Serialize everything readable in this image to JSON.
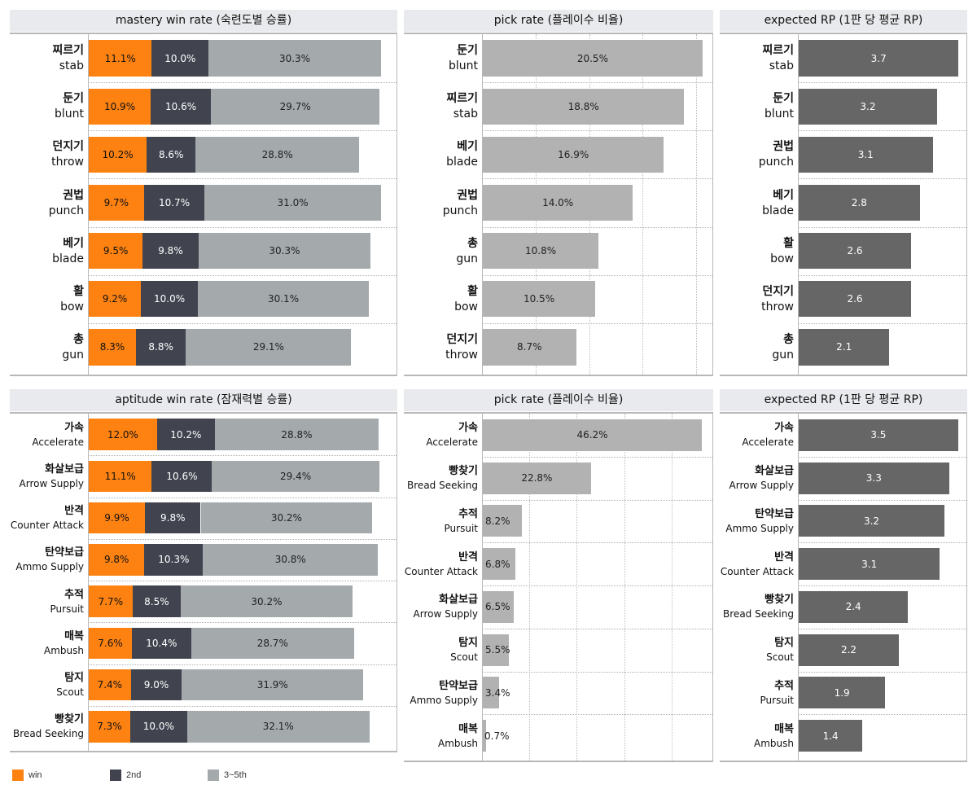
{
  "colors": {
    "win": "#fd8212",
    "second": "#41444f",
    "third_to_fifth": "#a4a9ac",
    "pick": "#b2b2b2",
    "rp": "#666666",
    "title_bg": "#e9eaed"
  },
  "legend": [
    {
      "label": "win",
      "color": "#fd8212"
    },
    {
      "label": "2nd",
      "color": "#41444f"
    },
    {
      "label": "3~5th",
      "color": "#a4a9ac"
    }
  ],
  "chart_data": [
    {
      "id": "mastery_win",
      "type": "bar",
      "stacked": true,
      "orientation": "horizontal",
      "title": "mastery win rate (숙련도별 승률)",
      "categories": [
        {
          "ko": "찌르기",
          "en": "stab"
        },
        {
          "ko": "둔기",
          "en": "blunt"
        },
        {
          "ko": "던지기",
          "en": "throw"
        },
        {
          "ko": "권법",
          "en": "punch"
        },
        {
          "ko": "베기",
          "en": "blade"
        },
        {
          "ko": "활",
          "en": "bow"
        },
        {
          "ko": "총",
          "en": "gun"
        }
      ],
      "series": [
        {
          "name": "win",
          "values": [
            11.1,
            10.9,
            10.2,
            9.7,
            9.5,
            9.2,
            8.3
          ],
          "labels": [
            "11.1%",
            "10.9%",
            "10.2%",
            "9.7%",
            "9.5%",
            "9.2%",
            "8.3%"
          ]
        },
        {
          "name": "2nd",
          "values": [
            10.0,
            10.6,
            8.6,
            10.7,
            9.8,
            10.0,
            8.8
          ],
          "labels": [
            "10.0%",
            "10.6%",
            "8.6%",
            "10.7%",
            "9.8%",
            "10.0%",
            "8.8%"
          ]
        },
        {
          "name": "3~5th",
          "values": [
            30.3,
            29.7,
            28.8,
            31.0,
            30.3,
            30.1,
            29.1
          ],
          "labels": [
            "30.3%",
            "29.7%",
            "28.8%",
            "31.0%",
            "30.3%",
            "30.1%",
            "29.1%"
          ]
        }
      ],
      "xlim": [
        0,
        54.3
      ],
      "grid": false
    },
    {
      "id": "mastery_pick",
      "type": "bar",
      "orientation": "horizontal",
      "title": "pick rate (플레이수 비율)",
      "categories": [
        {
          "ko": "둔기",
          "en": "blunt"
        },
        {
          "ko": "찌르기",
          "en": "stab"
        },
        {
          "ko": "베기",
          "en": "blade"
        },
        {
          "ko": "권법",
          "en": "punch"
        },
        {
          "ko": "총",
          "en": "gun"
        },
        {
          "ko": "활",
          "en": "bow"
        },
        {
          "ko": "던지기",
          "en": "throw"
        }
      ],
      "values": [
        20.5,
        18.8,
        16.9,
        14.0,
        10.8,
        10.5,
        8.7
      ],
      "labels": [
        "20.5%",
        "18.8%",
        "16.9%",
        "14.0%",
        "10.8%",
        "10.5%",
        "8.7%"
      ],
      "xlim": [
        0,
        21.5
      ],
      "grid_step": 5,
      "grid": true
    },
    {
      "id": "mastery_rp",
      "type": "bar",
      "orientation": "horizontal",
      "title": "expected RP (1판 당 평균 RP)",
      "categories": [
        {
          "ko": "찌르기",
          "en": "stab"
        },
        {
          "ko": "둔기",
          "en": "blunt"
        },
        {
          "ko": "권법",
          "en": "punch"
        },
        {
          "ko": "베기",
          "en": "blade"
        },
        {
          "ko": "활",
          "en": "bow"
        },
        {
          "ko": "던지기",
          "en": "throw"
        },
        {
          "ko": "총",
          "en": "gun"
        }
      ],
      "values": [
        3.7,
        3.2,
        3.1,
        2.8,
        2.6,
        2.6,
        2.1
      ],
      "labels": [
        "3.7",
        "3.2",
        "3.1",
        "2.8",
        "2.6",
        "2.6",
        "2.1"
      ],
      "xlim": [
        0,
        3.9
      ],
      "grid": false
    },
    {
      "id": "aptitude_win",
      "type": "bar",
      "stacked": true,
      "orientation": "horizontal",
      "title": "aptitude win rate (잠재력별 승률)",
      "categories": [
        {
          "ko": "가속",
          "en": "Accelerate"
        },
        {
          "ko": "화살보급",
          "en": "Arrow Supply"
        },
        {
          "ko": "반격",
          "en": "Counter Attack"
        },
        {
          "ko": "탄약보급",
          "en": "Ammo Supply"
        },
        {
          "ko": "추적",
          "en": "Pursuit"
        },
        {
          "ko": "매복",
          "en": "Ambush"
        },
        {
          "ko": "탐지",
          "en": "Scout"
        },
        {
          "ko": "빵찾기",
          "en": "Bread Seeking"
        }
      ],
      "series": [
        {
          "name": "win",
          "values": [
            12.0,
            11.1,
            9.9,
            9.8,
            7.7,
            7.6,
            7.4,
            7.3
          ],
          "labels": [
            "12.0%",
            "11.1%",
            "9.9%",
            "9.8%",
            "7.7%",
            "7.6%",
            "7.4%",
            "7.3%"
          ]
        },
        {
          "name": "2nd",
          "values": [
            10.2,
            10.6,
            9.8,
            10.3,
            8.5,
            10.4,
            9.0,
            10.0
          ],
          "labels": [
            "10.2%",
            "10.6%",
            "9.8%",
            "10.3%",
            "8.5%",
            "10.4%",
            "9.0%",
            "10.0%"
          ]
        },
        {
          "name": "3~5th",
          "values": [
            28.8,
            29.4,
            30.2,
            30.8,
            30.2,
            28.7,
            31.9,
            32.1
          ],
          "labels": [
            "28.8%",
            "29.4%",
            "30.2%",
            "30.8%",
            "30.2%",
            "28.7%",
            "31.9%",
            "32.1%"
          ]
        }
      ],
      "xlim": [
        0,
        54.3
      ],
      "grid": false
    },
    {
      "id": "aptitude_pick",
      "type": "bar",
      "orientation": "horizontal",
      "title": "pick rate (플레이수 비율)",
      "categories": [
        {
          "ko": "가속",
          "en": "Accelerate"
        },
        {
          "ko": "빵찾기",
          "en": "Bread Seeking"
        },
        {
          "ko": "추적",
          "en": "Pursuit"
        },
        {
          "ko": "반격",
          "en": "Counter Attack"
        },
        {
          "ko": "화살보급",
          "en": "Arrow Supply"
        },
        {
          "ko": "탐지",
          "en": "Scout"
        },
        {
          "ko": "탄약보급",
          "en": "Ammo Supply"
        },
        {
          "ko": "매복",
          "en": "Ambush"
        }
      ],
      "values": [
        46.2,
        22.8,
        8.2,
        6.8,
        6.5,
        5.5,
        3.4,
        0.7
      ],
      "labels": [
        "46.2%",
        "22.8%",
        "8.2%",
        "6.8%",
        "6.5%",
        "5.5%",
        "3.4%",
        "0.7%"
      ],
      "xlim": [
        0,
        48.6
      ],
      "grid_step": 10,
      "grid": true
    },
    {
      "id": "aptitude_rp",
      "type": "bar",
      "orientation": "horizontal",
      "title": "expected RP (1판 당 평균 RP)",
      "categories": [
        {
          "ko": "가속",
          "en": "Accelerate"
        },
        {
          "ko": "화살보급",
          "en": "Arrow Supply"
        },
        {
          "ko": "탄약보급",
          "en": "Ammo Supply"
        },
        {
          "ko": "반격",
          "en": "Counter Attack"
        },
        {
          "ko": "빵찾기",
          "en": "Bread Seeking"
        },
        {
          "ko": "탐지",
          "en": "Scout"
        },
        {
          "ko": "추적",
          "en": "Pursuit"
        },
        {
          "ko": "매복",
          "en": "Ambush"
        }
      ],
      "values": [
        3.5,
        3.3,
        3.2,
        3.1,
        2.4,
        2.2,
        1.9,
        1.4
      ],
      "labels": [
        "3.5",
        "3.3",
        "3.2",
        "3.1",
        "2.4",
        "2.2",
        "1.9",
        "1.4"
      ],
      "xlim": [
        0,
        3.7
      ],
      "grid": false
    }
  ]
}
